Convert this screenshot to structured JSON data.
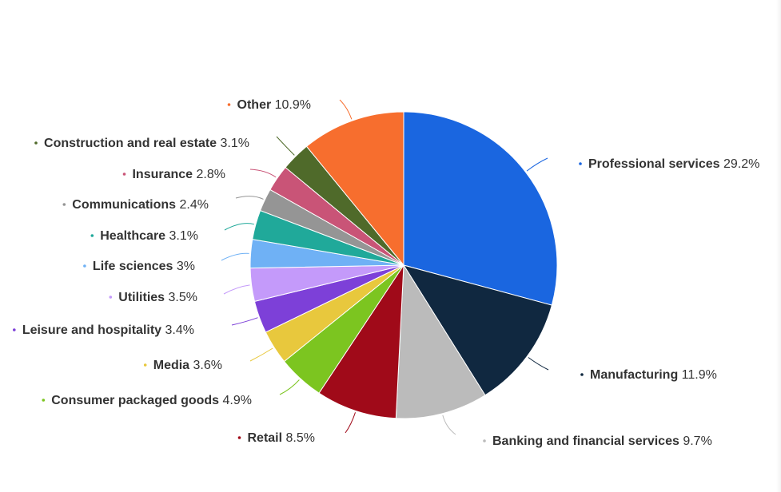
{
  "chart_data": {
    "type": "pie",
    "title": "",
    "start_at": "top",
    "direction": "clockwise",
    "unit": "%",
    "slices": [
      {
        "label": "Professional services",
        "value": 29.2,
        "color": "#1A66E0"
      },
      {
        "label": "Manufacturing",
        "value": 11.9,
        "color": "#102840"
      },
      {
        "label": "Banking and financial services",
        "value": 9.7,
        "color": "#BBBBBB"
      },
      {
        "label": "Retail",
        "value": 8.5,
        "color": "#A00A19"
      },
      {
        "label": "Consumer packaged goods",
        "value": 4.9,
        "color": "#7CC520"
      },
      {
        "label": "Media",
        "value": 3.6,
        "color": "#E8C83D"
      },
      {
        "label": "Leisure and hospitality",
        "value": 3.4,
        "color": "#7D40D8"
      },
      {
        "label": "Utilities",
        "value": 3.5,
        "color": "#C49AFA"
      },
      {
        "label": "Life sciences",
        "value": 3,
        "value_text": "3%",
        "color": "#6FB1F5"
      },
      {
        "label": "Healthcare",
        "value": 3.1,
        "color": "#20A99A"
      },
      {
        "label": "Communications",
        "value": 2.4,
        "color": "#959595"
      },
      {
        "label": "Insurance",
        "value": 2.8,
        "color": "#C95477"
      },
      {
        "label": "Construction and real estate",
        "value": 3.1,
        "color": "#4F6A2A"
      },
      {
        "label": "Other",
        "value": 10.9,
        "color": "#F76E2E"
      }
    ]
  }
}
